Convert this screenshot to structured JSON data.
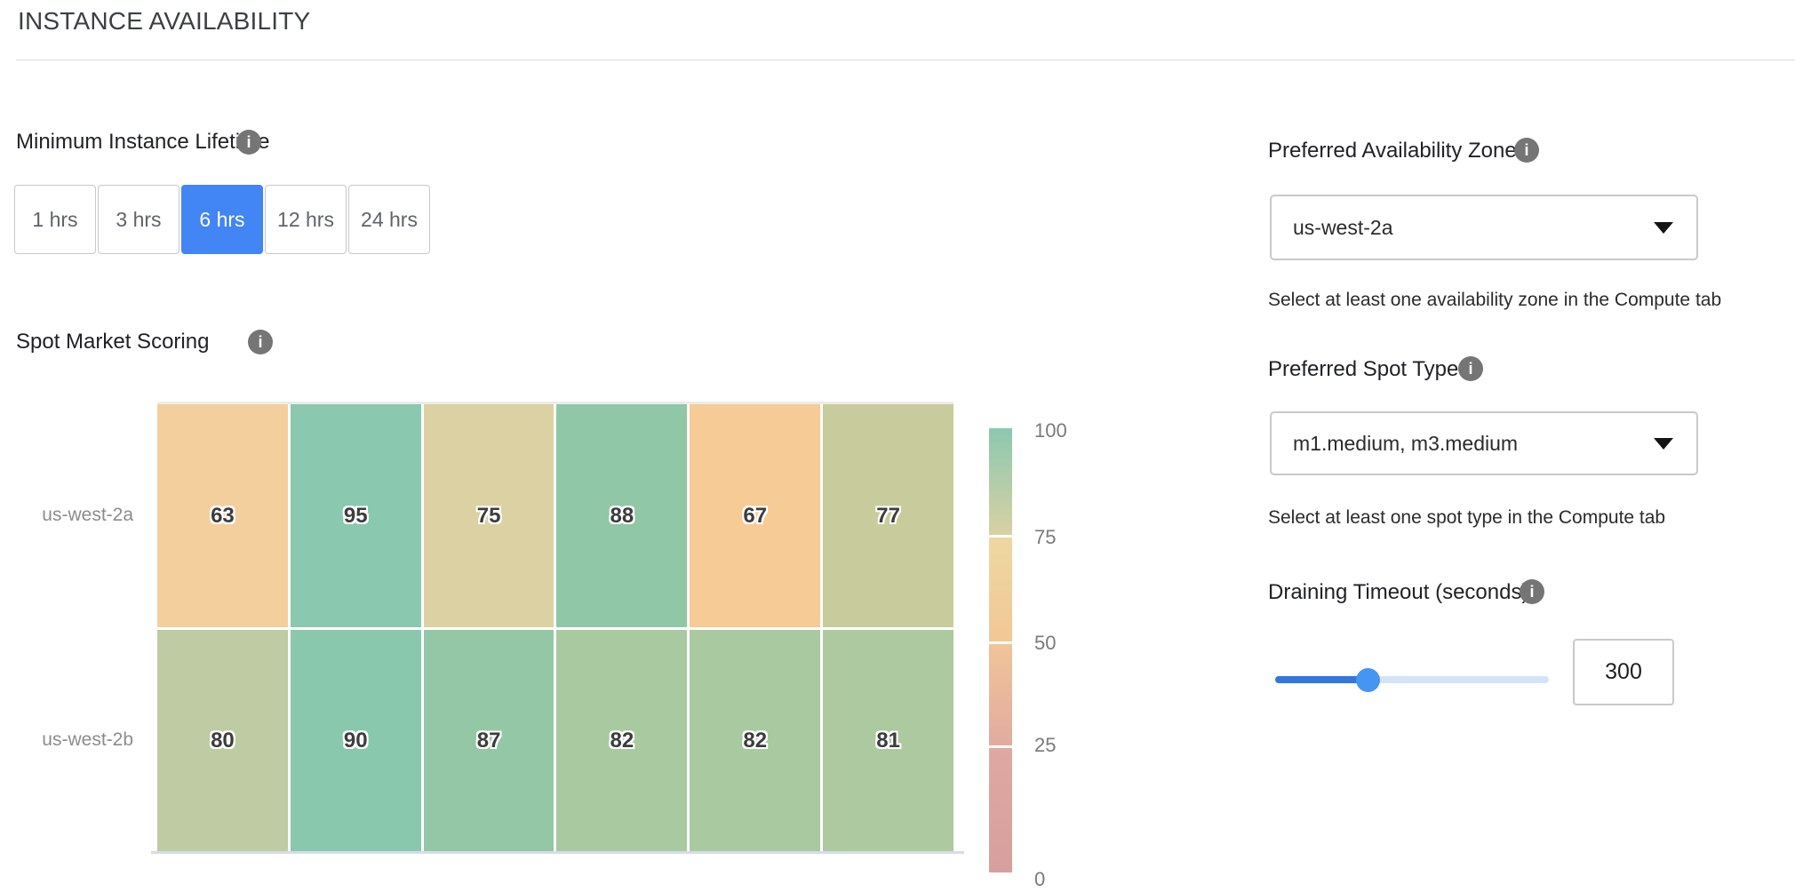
{
  "page": {
    "title": "INSTANCE AVAILABILITY"
  },
  "lifetime": {
    "label": "Minimum Instance Lifetime",
    "options": [
      "1 hrs",
      "3 hrs",
      "6 hrs",
      "12 hrs",
      "24 hrs"
    ],
    "selected": "6 hrs",
    "selected_index": 2,
    "accent_color": "#4285f4"
  },
  "chart_data": {
    "type": "heatmap",
    "title": "Spot Market Scoring",
    "rows": [
      "us-west-2a",
      "us-west-2b"
    ],
    "columns": [
      "",
      "",
      "",
      "",
      "",
      ""
    ],
    "values": [
      [
        63,
        95,
        75,
        88,
        67,
        77
      ],
      [
        80,
        90,
        87,
        82,
        82,
        81
      ]
    ],
    "cell_colors": [
      [
        "#f4cf9e",
        "#8bc8b0",
        "#dcd1a2",
        "#90c7a7",
        "#f7cb95",
        "#c8cc9d"
      ],
      [
        "#bfcba3",
        "#8ac8ad",
        "#94c7a5",
        "#a9c9a0",
        "#a9c9a0",
        "#adc9a0"
      ]
    ],
    "value_range": [
      0,
      100
    ],
    "legend_position": "right",
    "colorbar": {
      "tick_labels": [
        "100",
        "75",
        "50",
        "25",
        "0"
      ],
      "segments": [
        {
          "from": "#8cc8b0",
          "to": "#d8d1a3"
        },
        {
          "from": "#edd8a2",
          "to": "#f2c795"
        },
        {
          "from": "#f0c49a",
          "to": "#e2ab9d"
        },
        {
          "from": "#dfa9a2",
          "to": "#d79f9d"
        }
      ]
    }
  },
  "right_panel": {
    "availability_zones": {
      "label": "Preferred Availability Zones",
      "value": "us-west-2a",
      "helper": "Select at least one availability zone in the Compute tab"
    },
    "spot_types": {
      "label": "Preferred Spot Types",
      "value": "m1.medium, m3.medium",
      "helper": "Select at least one spot type in the Compute tab"
    },
    "draining_timeout": {
      "label": "Draining Timeout (seconds)",
      "value": "300",
      "slider_fill_color": "#3376de",
      "slider_track_color": "#d4e3f8",
      "slider_thumb_color": "#4596f2"
    }
  },
  "icons": {
    "info": "i",
    "dropdown_caret": "caret-down"
  }
}
